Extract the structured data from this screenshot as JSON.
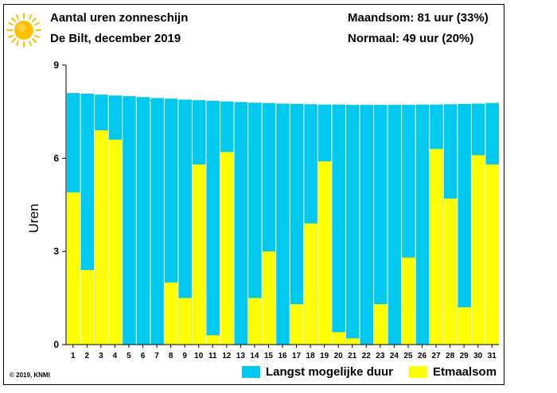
{
  "header": {
    "title": "Aantal uren zonneschijn",
    "subtitle": "De Bilt, december 2019",
    "stat_month": "Maandsom: 81 uur (33%)",
    "stat_normal": "Normaal: 49 uur (20%)"
  },
  "footer": {
    "copyright": "© 2019, KNMI"
  },
  "colors": {
    "max_duration": "#00c8ef",
    "daily_sum": "#ffff00",
    "sun": "#ffc000"
  },
  "icons": {
    "sun": "sun-icon"
  },
  "chart_data": {
    "type": "bar",
    "title": "Aantal uren zonneschijn",
    "xlabel": "",
    "ylabel": "Uren",
    "ylim": [
      0,
      9
    ],
    "yticks": [
      0,
      3,
      6,
      9
    ],
    "grid": false,
    "legend_position": "bottom",
    "categories": [
      "1",
      "2",
      "3",
      "4",
      "5",
      "6",
      "7",
      "8",
      "9",
      "10",
      "11",
      "12",
      "13",
      "14",
      "15",
      "16",
      "17",
      "18",
      "19",
      "20",
      "21",
      "22",
      "23",
      "24",
      "25",
      "26",
      "27",
      "28",
      "29",
      "30",
      "31"
    ],
    "series": [
      {
        "name": "Langst mogelijke duur",
        "color": "#00c8ef",
        "values": [
          8.1,
          8.08,
          8.05,
          8.02,
          8.0,
          7.97,
          7.94,
          7.92,
          7.89,
          7.87,
          7.85,
          7.83,
          7.81,
          7.79,
          7.78,
          7.76,
          7.75,
          7.74,
          7.73,
          7.73,
          7.72,
          7.72,
          7.72,
          7.72,
          7.72,
          7.73,
          7.73,
          7.74,
          7.75,
          7.76,
          7.78
        ]
      },
      {
        "name": "Etmaalsom",
        "color": "#ffff00",
        "values": [
          4.9,
          2.4,
          6.9,
          6.6,
          0.0,
          0.0,
          0.0,
          2.0,
          1.5,
          5.8,
          0.3,
          6.2,
          0.0,
          1.5,
          3.0,
          0.0,
          1.3,
          3.9,
          5.9,
          0.4,
          0.2,
          0.0,
          1.3,
          0.0,
          2.8,
          0.0,
          6.3,
          4.7,
          1.2,
          6.1,
          5.8
        ]
      }
    ]
  }
}
